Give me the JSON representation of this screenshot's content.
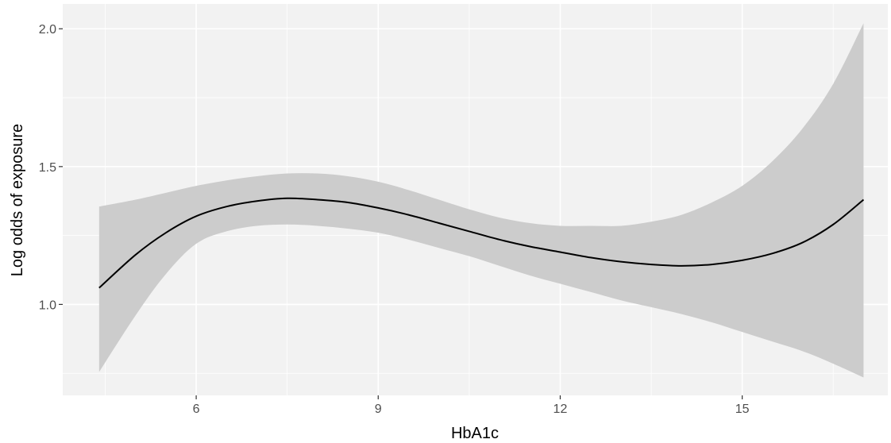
{
  "chart_data": {
    "type": "line",
    "title": "",
    "xlabel": "HbA1c",
    "ylabel": "Log odds of exposure",
    "xlim": [
      3.8,
      17.4
    ],
    "ylim": [
      0.67,
      2.09
    ],
    "x_ticks": [
      6,
      9,
      12,
      15
    ],
    "x_tick_labels": [
      "6",
      "9",
      "12",
      "15"
    ],
    "x_minor_ticks": [
      4.5,
      7.5,
      10.5,
      13.5,
      16.5
    ],
    "y_ticks": [
      1.0,
      1.5,
      2.0
    ],
    "y_tick_labels": [
      "1.0",
      "1.5",
      "2.0"
    ],
    "y_minor_ticks": [
      0.75,
      1.25,
      1.75
    ],
    "grid": true,
    "legend": "none",
    "colors": {
      "panel_background": "#f2f2f2",
      "grid_major": "#ffffff",
      "grid_minor": "#ffffff",
      "ribbon": "#cccccc",
      "line": "#000000"
    },
    "series": [
      {
        "x": [
          4.4,
          5.0,
          5.5,
          6.0,
          6.5,
          7.0,
          7.5,
          8.0,
          8.5,
          9.0,
          9.5,
          10.0,
          10.5,
          11.0,
          11.5,
          12.0,
          12.5,
          13.0,
          13.5,
          14.0,
          14.5,
          15.0,
          15.5,
          16.0,
          16.5,
          17.0
        ],
        "y": [
          1.06,
          1.18,
          1.26,
          1.32,
          1.355,
          1.375,
          1.385,
          1.38,
          1.37,
          1.35,
          1.325,
          1.295,
          1.265,
          1.235,
          1.21,
          1.19,
          1.17,
          1.155,
          1.145,
          1.14,
          1.145,
          1.16,
          1.185,
          1.225,
          1.29,
          1.38
        ],
        "lower": [
          0.755,
          0.96,
          1.11,
          1.22,
          1.265,
          1.285,
          1.29,
          1.285,
          1.275,
          1.26,
          1.235,
          1.205,
          1.175,
          1.14,
          1.105,
          1.075,
          1.045,
          1.015,
          0.99,
          0.965,
          0.935,
          0.9,
          0.865,
          0.83,
          0.785,
          0.735
        ],
        "upper": [
          1.355,
          1.38,
          1.405,
          1.43,
          1.45,
          1.465,
          1.475,
          1.475,
          1.465,
          1.445,
          1.415,
          1.38,
          1.345,
          1.315,
          1.295,
          1.285,
          1.285,
          1.285,
          1.3,
          1.325,
          1.37,
          1.43,
          1.52,
          1.64,
          1.8,
          2.02
        ]
      }
    ]
  }
}
